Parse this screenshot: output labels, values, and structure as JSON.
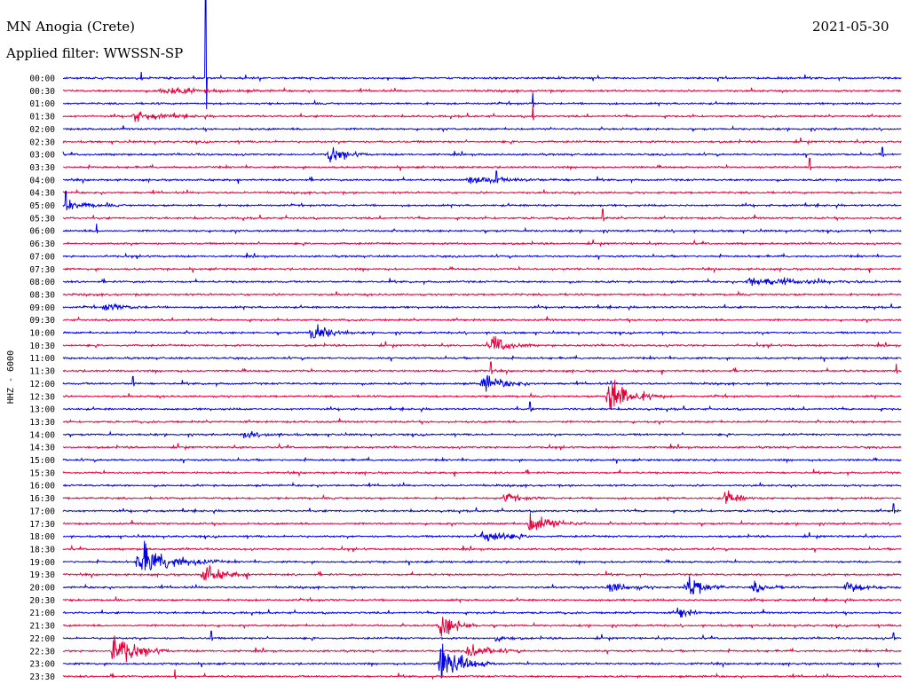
{
  "header": {
    "station": "MN Anogia (Crete)",
    "filter": "Applied filter: WWSSN-SP",
    "date": "2021-05-30"
  },
  "colors": {
    "blue": "#0000e6",
    "red": "#e6003c"
  },
  "chart_data": {
    "type": "seismogram (helicorder)",
    "channel_label": "HHZ - 6000",
    "trace_interval_minutes": 30,
    "rows": [
      "00:00",
      "00:30",
      "01:00",
      "01:30",
      "02:00",
      "02:30",
      "03:00",
      "03:30",
      "04:00",
      "04:30",
      "05:00",
      "05:30",
      "06:00",
      "06:30",
      "07:00",
      "07:30",
      "08:00",
      "08:30",
      "09:00",
      "09:30",
      "10:00",
      "10:30",
      "11:00",
      "11:30",
      "12:00",
      "12:30",
      "13:00",
      "13:30",
      "14:00",
      "14:30",
      "15:00",
      "15:30",
      "16:00",
      "16:30",
      "17:00",
      "17:30",
      "18:00",
      "18:30",
      "19:00",
      "19:30",
      "20:00",
      "20:30",
      "21:00",
      "21:30",
      "22:00",
      "22:30",
      "23:00",
      "23:30"
    ],
    "events": [
      {
        "row": 1,
        "minute": 3.5,
        "amp": 4,
        "dur": 4
      },
      {
        "row": 3,
        "minute": 2.5,
        "amp": 5,
        "dur": 3
      },
      {
        "row": 6,
        "minute": 9.5,
        "amp": 10,
        "dur": 1.5
      },
      {
        "row": 8,
        "minute": 14.5,
        "amp": 4,
        "dur": 4
      },
      {
        "row": 10,
        "minute": 0.2,
        "amp": 5,
        "dur": 2
      },
      {
        "row": 16,
        "minute": 24.5,
        "amp": 5,
        "dur": 5
      },
      {
        "row": 18,
        "minute": 1.5,
        "amp": 4,
        "dur": 2
      },
      {
        "row": 20,
        "minute": 8.9,
        "amp": 14,
        "dur": 1.5
      },
      {
        "row": 21,
        "minute": 15.3,
        "amp": 12,
        "dur": 1.5
      },
      {
        "row": 24,
        "minute": 15.0,
        "amp": 10,
        "dur": 2
      },
      {
        "row": 25,
        "minute": 19.5,
        "amp": 26,
        "dur": 2
      },
      {
        "row": 28,
        "minute": 6.5,
        "amp": 4,
        "dur": 2
      },
      {
        "row": 33,
        "minute": 15.8,
        "amp": 5,
        "dur": 1.5
      },
      {
        "row": 33,
        "minute": 23.7,
        "amp": 12,
        "dur": 1
      },
      {
        "row": 35,
        "minute": 16.7,
        "amp": 13,
        "dur": 2
      },
      {
        "row": 36,
        "minute": 15.0,
        "amp": 10,
        "dur": 2
      },
      {
        "row": 38,
        "minute": 2.7,
        "amp": 22,
        "dur": 3
      },
      {
        "row": 39,
        "minute": 5.0,
        "amp": 10,
        "dur": 2
      },
      {
        "row": 40,
        "minute": 19.5,
        "amp": 6,
        "dur": 2
      },
      {
        "row": 40,
        "minute": 22.3,
        "amp": 16,
        "dur": 1.5
      },
      {
        "row": 40,
        "minute": 24.7,
        "amp": 6,
        "dur": 1.5
      },
      {
        "row": 40,
        "minute": 28.0,
        "amp": 6,
        "dur": 2
      },
      {
        "row": 42,
        "minute": 22.0,
        "amp": 8,
        "dur": 1
      },
      {
        "row": 43,
        "minute": 13.5,
        "amp": 16,
        "dur": 1.5
      },
      {
        "row": 44,
        "minute": 15.5,
        "amp": 4,
        "dur": 1
      },
      {
        "row": 45,
        "minute": 1.8,
        "amp": 22,
        "dur": 2
      },
      {
        "row": 45,
        "minute": 14.5,
        "amp": 8,
        "dur": 2
      },
      {
        "row": 46,
        "minute": 13.5,
        "amp": 24,
        "dur": 2
      }
    ],
    "spikes": [
      {
        "row": 0,
        "minute": 2.8,
        "amp": 7
      },
      {
        "row": 0,
        "minute": 5.1,
        "amp": 100
      },
      {
        "row": 2,
        "minute": 16.8,
        "amp": 12
      },
      {
        "row": 3,
        "minute": 16.8,
        "amp": 12
      },
      {
        "row": 6,
        "minute": 29.3,
        "amp": 8
      },
      {
        "row": 7,
        "minute": 26.7,
        "amp": 10
      },
      {
        "row": 8,
        "minute": 15.5,
        "amp": 10
      },
      {
        "row": 10,
        "minute": 0.1,
        "amp": 16
      },
      {
        "row": 11,
        "minute": 19.3,
        "amp": 10
      },
      {
        "row": 12,
        "minute": 1.2,
        "amp": 8
      },
      {
        "row": 21,
        "minute": 15.4,
        "amp": 10
      },
      {
        "row": 23,
        "minute": 15.3,
        "amp": 10
      },
      {
        "row": 23,
        "minute": 29.8,
        "amp": 8
      },
      {
        "row": 24,
        "minute": 2.5,
        "amp": 8
      },
      {
        "row": 26,
        "minute": 16.7,
        "amp": 8
      },
      {
        "row": 34,
        "minute": 29.7,
        "amp": 8
      },
      {
        "row": 44,
        "minute": 5.3,
        "amp": 8
      },
      {
        "row": 44,
        "minute": 29.7,
        "amp": 6
      },
      {
        "row": 47,
        "minute": 4.0,
        "amp": 8
      }
    ]
  }
}
